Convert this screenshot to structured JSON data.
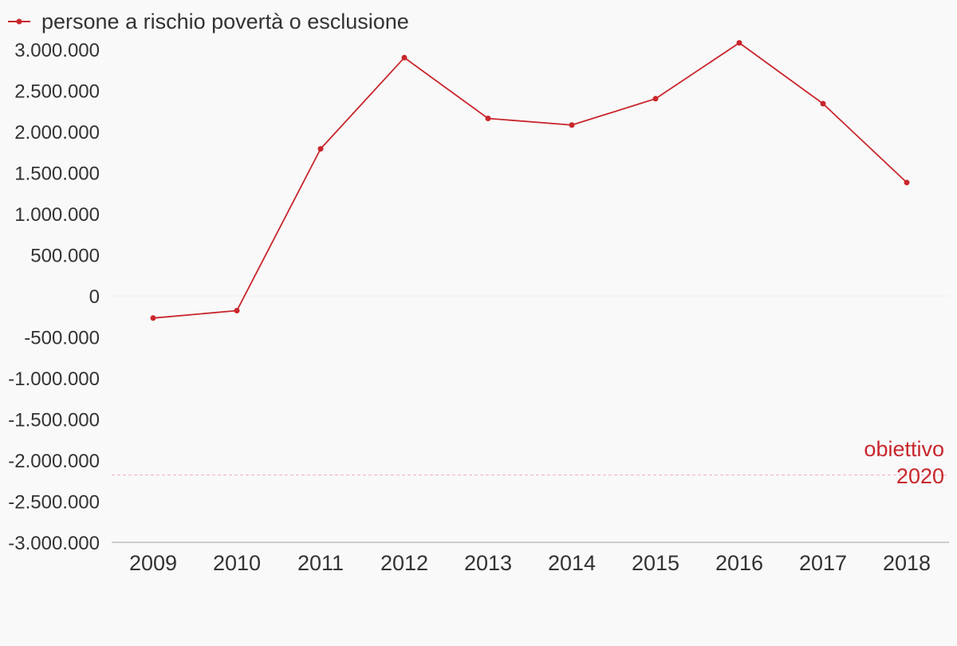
{
  "chart_data": {
    "type": "line",
    "categories": [
      "2009",
      "2010",
      "2011",
      "2012",
      "2013",
      "2014",
      "2015",
      "2016",
      "2017",
      "2018"
    ],
    "series": [
      {
        "name": "persone a rischio povertà o esclusione",
        "values": [
          -270000,
          -180000,
          1790000,
          2900000,
          2160000,
          2080000,
          2400000,
          3080000,
          2340000,
          1380000
        ],
        "color": "#c8262c"
      }
    ],
    "ylim": [
      -3000000,
      3000000
    ],
    "yticks": [
      3000000,
      2500000,
      2000000,
      1500000,
      1000000,
      500000,
      0,
      -500000,
      -1000000,
      -1500000,
      -2000000,
      -2500000,
      -3000000
    ],
    "ytick_labels": [
      "3.000.000",
      "2.500.000",
      "2.000.000",
      "1.500.000",
      "1.000.000",
      "500.000",
      "0",
      "-500.000",
      "-1.000.000",
      "-1.500.000",
      "-2.000.000",
      "-2.500.000",
      "-3.000.000"
    ],
    "target_line": {
      "value": -2180000,
      "label_lines": [
        "obiettivo",
        "2020"
      ],
      "color": "#c8262c",
      "line_color": "#f2b8bb"
    },
    "legend_position": "top-left",
    "grid": false,
    "title": "",
    "xlabel": "",
    "ylabel": ""
  }
}
